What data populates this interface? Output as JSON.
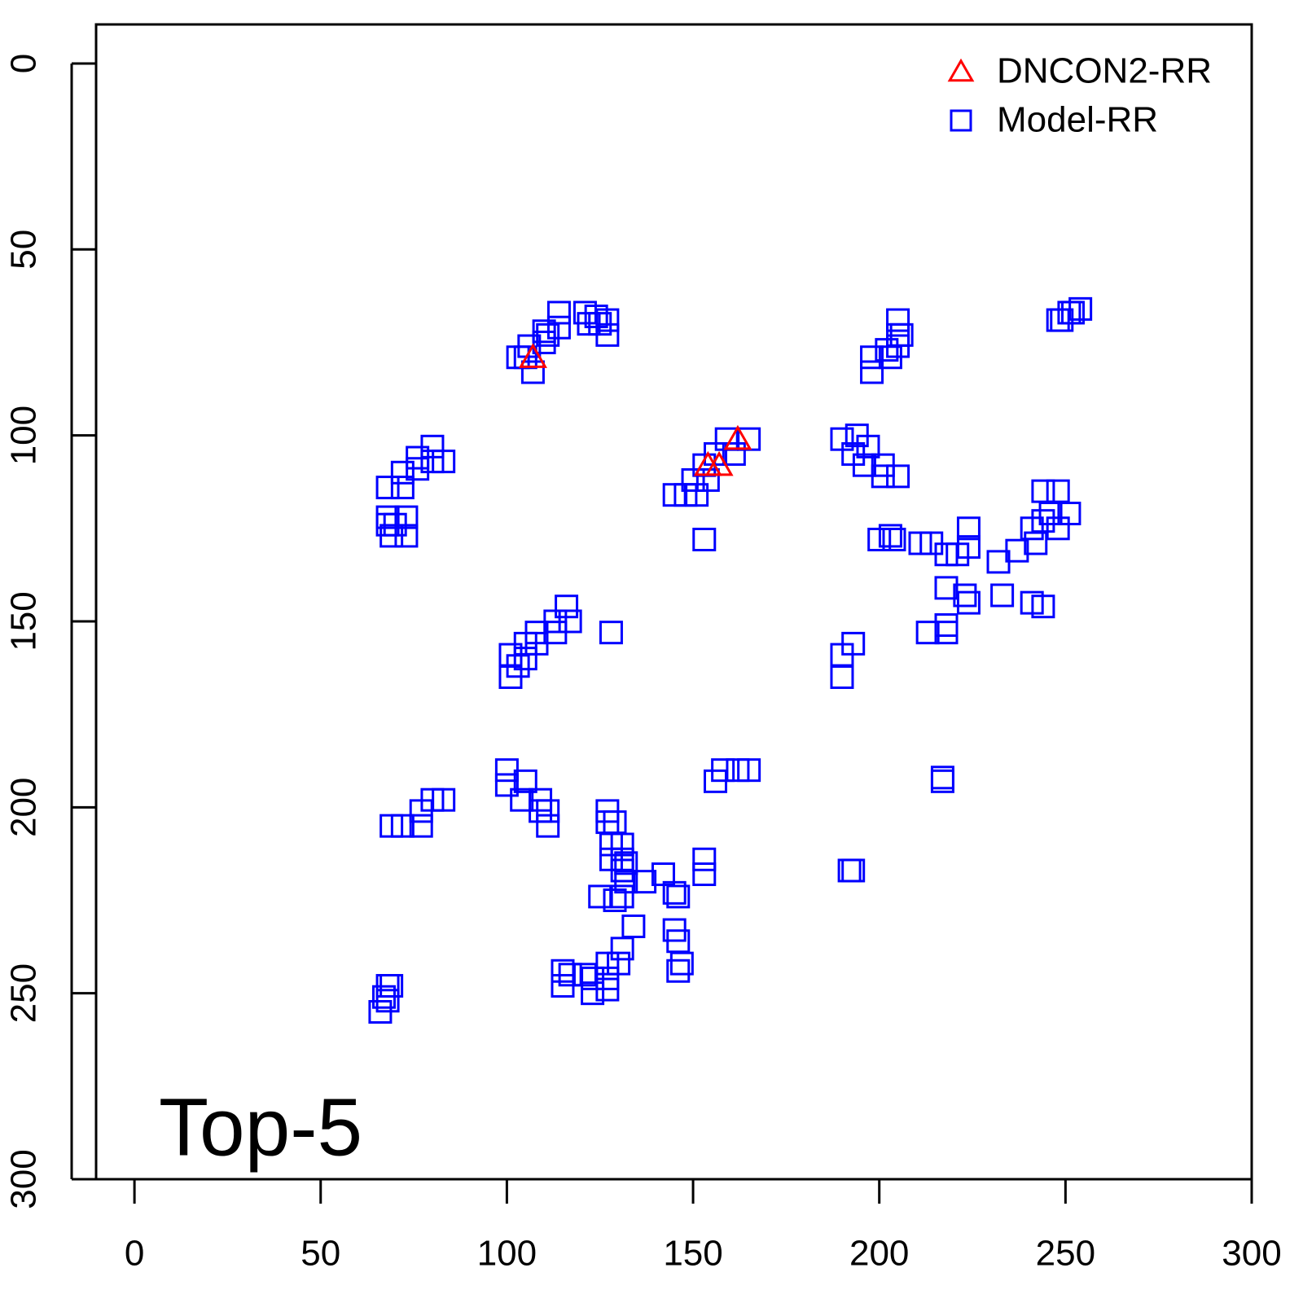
{
  "chart_data": {
    "type": "scatter",
    "annotation": "Top-5",
    "xlim": [
      -10.3,
      300
    ],
    "ylim": [
      300,
      -10.5
    ],
    "xticks": [
      0,
      50,
      100,
      150,
      200,
      250,
      300
    ],
    "yticks": [
      0,
      50,
      100,
      150,
      200,
      250,
      300
    ],
    "legend": "top-right",
    "series": [
      {
        "name": "DNCON2-RR",
        "color": "#ff0000",
        "marker": "triangle",
        "x": [
          107,
          154,
          157,
          162
        ],
        "y": [
          79,
          108,
          108,
          101
        ]
      },
      {
        "name": "Model-RR",
        "color": "#0000ff",
        "marker": "square",
        "x": [
          103,
          105,
          107,
          106,
          110,
          110,
          111,
          114,
          114,
          121,
          122,
          124,
          127,
          127,
          125,
          68,
          72,
          72,
          76,
          76,
          80,
          83,
          80,
          68,
          68,
          69,
          73,
          73,
          70,
          145,
          148,
          151,
          150,
          154,
          153,
          156,
          159,
          161,
          165,
          153,
          190,
          194,
          193,
          196,
          197,
          201,
          201,
          205,
          198,
          198,
          203,
          202,
          205,
          205,
          206,
          205,
          248,
          251,
          254,
          252,
          249,
          200,
          203,
          204,
          211,
          214,
          218,
          221,
          224,
          224,
          218,
          223,
          224,
          232,
          237,
          242,
          241,
          244,
          248,
          244,
          246,
          251,
          248,
          233,
          241,
          244,
          213,
          218,
          218,
          101,
          101,
          103,
          105,
          108,
          108,
          113,
          113,
          116,
          117,
          128,
          105,
          190,
          190,
          193,
          100,
          100,
          104,
          105,
          109,
          109,
          111,
          111,
          69,
          72,
          77,
          77,
          80,
          83,
          156,
          158,
          162,
          165,
          217,
          217,
          192,
          193,
          127,
          127,
          129,
          128,
          128,
          131,
          131,
          131,
          132,
          132,
          131,
          129,
          125,
          137,
          142,
          145,
          146,
          153,
          153,
          134,
          145,
          146,
          147,
          146,
          131,
          130,
          127,
          127,
          127,
          123,
          123,
          121,
          115,
          115,
          117,
          68,
          69,
          66,
          67,
          68
        ],
        "y": [
          79,
          79,
          83,
          76,
          75,
          72,
          73,
          71,
          67,
          67,
          70,
          68,
          69,
          73,
          70,
          114,
          110,
          114,
          109,
          106,
          103,
          107,
          107,
          122,
          124,
          127,
          122,
          127,
          124,
          116,
          116,
          116,
          112,
          112,
          108,
          105,
          101,
          105,
          101,
          128,
          101,
          100,
          105,
          108,
          103,
          108,
          111,
          111,
          83,
          79,
          79,
          77,
          76,
          73,
          73,
          69,
          69,
          67,
          66,
          67,
          69,
          128,
          127,
          128,
          129,
          129,
          132,
          132,
          130,
          125,
          141,
          143,
          145,
          134,
          131,
          129,
          125,
          115,
          115,
          123,
          121,
          121,
          125,
          143,
          145,
          146,
          153,
          153,
          151,
          165,
          159,
          162,
          156,
          156,
          153,
          153,
          150,
          146,
          150,
          153,
          160,
          159,
          165,
          156,
          190,
          194,
          198,
          193,
          198,
          201,
          201,
          205,
          205,
          205,
          205,
          201,
          198,
          198,
          193,
          190,
          190,
          190,
          192,
          193,
          217,
          217,
          201,
          204,
          204,
          210,
          214,
          210,
          214,
          217,
          215,
          220,
          224,
          225,
          224,
          220,
          218,
          223,
          224,
          214,
          218,
          232,
          233,
          236,
          242,
          244,
          238,
          242,
          242,
          246,
          249,
          246,
          250,
          245,
          244,
          248,
          245,
          248,
          248,
          255,
          251,
          252
        ]
      }
    ]
  }
}
